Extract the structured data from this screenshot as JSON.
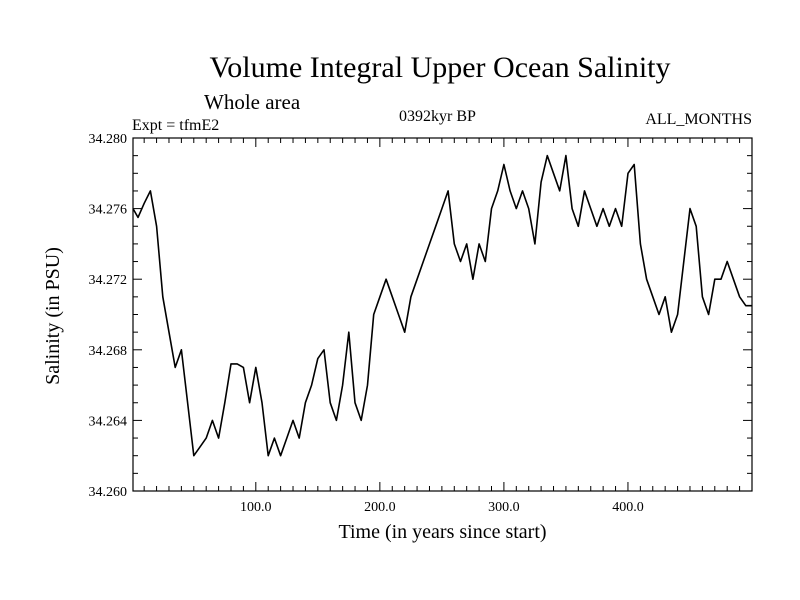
{
  "chart_data": {
    "type": "line",
    "title": "Volume Integral Upper Ocean Salinity",
    "subtitle": "Whole area",
    "annotations": {
      "experiment": "Expt = tfmE2",
      "period": "0392kyr BP",
      "months": "ALL_MONTHS"
    },
    "xlabel": "Time (in years since start)",
    "ylabel": "Salinity (in PSU)",
    "xlim": [
      1,
      500
    ],
    "ylim": [
      34.26,
      34.28
    ],
    "x_ticks": [
      100,
      200,
      300,
      400
    ],
    "x_tick_labels": [
      "100.0",
      "200.0",
      "300.0",
      "400.0"
    ],
    "y_ticks": [
      34.26,
      34.264,
      34.268,
      34.272,
      34.276,
      34.28
    ],
    "y_tick_labels": [
      "34.260",
      "34.264",
      "34.268",
      "34.272",
      "34.276",
      "34.280"
    ],
    "line_color": "#000000",
    "series": [
      {
        "x": [
          1,
          5,
          10,
          15,
          20,
          25,
          30,
          35,
          40,
          45,
          50,
          55,
          60,
          65,
          70,
          75,
          80,
          85,
          90,
          95,
          100,
          105,
          110,
          115,
          120,
          125,
          130,
          135,
          140,
          145,
          150,
          155,
          160,
          165,
          170,
          175,
          180,
          185,
          190,
          195,
          200,
          205,
          210,
          215,
          220,
          225,
          230,
          235,
          240,
          245,
          250,
          255,
          260,
          265,
          270,
          275,
          280,
          285,
          290,
          295,
          300,
          305,
          310,
          315,
          320,
          325,
          330,
          335,
          340,
          345,
          350,
          355,
          360,
          365,
          370,
          375,
          380,
          385,
          390,
          395,
          400,
          405,
          410,
          415,
          420,
          425,
          430,
          435,
          440,
          445,
          450,
          455,
          460,
          465,
          470,
          475,
          480,
          485,
          490,
          495,
          500
        ],
        "values": [
          34.276,
          34.2755,
          34.2763,
          34.277,
          34.275,
          34.271,
          34.269,
          34.267,
          34.268,
          34.265,
          34.262,
          34.2625,
          34.263,
          34.264,
          34.263,
          34.265,
          34.2672,
          34.2672,
          34.267,
          34.265,
          34.267,
          34.265,
          34.262,
          34.263,
          34.262,
          34.263,
          34.264,
          34.263,
          34.265,
          34.266,
          34.2675,
          34.268,
          34.265,
          34.264,
          34.266,
          34.269,
          34.265,
          34.264,
          34.266,
          34.27,
          34.271,
          34.272,
          34.271,
          34.27,
          34.269,
          34.271,
          34.272,
          34.273,
          34.274,
          34.275,
          34.276,
          34.277,
          34.274,
          34.273,
          34.274,
          34.272,
          34.274,
          34.273,
          34.276,
          34.277,
          34.2785,
          34.277,
          34.276,
          34.277,
          34.276,
          34.274,
          34.2775,
          34.279,
          34.278,
          34.277,
          34.279,
          34.276,
          34.275,
          34.277,
          34.276,
          34.275,
          34.276,
          34.275,
          34.276,
          34.275,
          34.278,
          34.2785,
          34.274,
          34.272,
          34.271,
          34.27,
          34.271,
          34.269,
          34.27,
          34.273,
          34.276,
          34.275,
          34.271,
          34.27,
          34.272,
          34.272,
          34.273,
          34.272,
          34.271,
          34.2705,
          34.2705
        ]
      }
    ]
  }
}
